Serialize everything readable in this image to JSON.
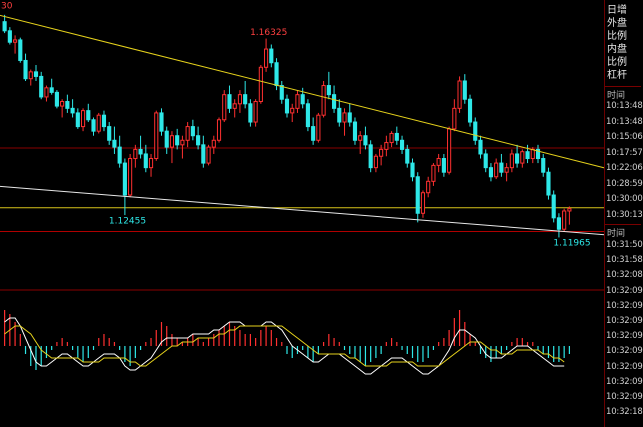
{
  "chart_data": {
    "type": "candlestick",
    "price_range": [
      1.113,
      1.17
    ],
    "candles": [
      [
        1.167,
        1.1685,
        1.1645,
        1.165
      ],
      [
        1.165,
        1.1658,
        1.162,
        1.1625
      ],
      [
        1.1625,
        1.164,
        1.16,
        1.163
      ],
      [
        1.163,
        1.1635,
        1.158,
        1.1585
      ],
      [
        1.1585,
        1.16,
        1.154,
        1.1545
      ],
      [
        1.1545,
        1.1565,
        1.153,
        1.156
      ],
      [
        1.156,
        1.1575,
        1.154,
        1.155
      ],
      [
        1.155,
        1.156,
        1.15,
        1.1505
      ],
      [
        1.1505,
        1.153,
        1.1495,
        1.1525
      ],
      [
        1.1525,
        1.1545,
        1.151,
        1.1515
      ],
      [
        1.1515,
        1.152,
        1.148,
        1.1485
      ],
      [
        1.1485,
        1.15,
        1.146,
        1.1495
      ],
      [
        1.1495,
        1.151,
        1.147,
        1.148
      ],
      [
        1.148,
        1.15,
        1.146,
        1.147
      ],
      [
        1.147,
        1.148,
        1.1435,
        1.144
      ],
      [
        1.144,
        1.148,
        1.143,
        1.1475
      ],
      [
        1.1475,
        1.149,
        1.145,
        1.1455
      ],
      [
        1.1455,
        1.146,
        1.142,
        1.143
      ],
      [
        1.143,
        1.147,
        1.1425,
        1.1465
      ],
      [
        1.1465,
        1.1475,
        1.143,
        1.144
      ],
      [
        1.144,
        1.145,
        1.14,
        1.141
      ],
      [
        1.141,
        1.144,
        1.138,
        1.1395
      ],
      [
        1.1395,
        1.142,
        1.135,
        1.136
      ],
      [
        1.136,
        1.137,
        1.1246,
        1.129
      ],
      [
        1.129,
        1.138,
        1.1285,
        1.137
      ],
      [
        1.137,
        1.14,
        1.135,
        1.139
      ],
      [
        1.139,
        1.142,
        1.137,
        1.138
      ],
      [
        1.138,
        1.14,
        1.134,
        1.135
      ],
      [
        1.135,
        1.138,
        1.133,
        1.137
      ],
      [
        1.137,
        1.1475,
        1.1365,
        1.147
      ],
      [
        1.147,
        1.148,
        1.142,
        1.143
      ],
      [
        1.143,
        1.144,
        1.138,
        1.1395
      ],
      [
        1.1395,
        1.143,
        1.136,
        1.142
      ],
      [
        1.142,
        1.1435,
        1.139,
        1.14
      ],
      [
        1.14,
        1.142,
        1.137,
        1.141
      ],
      [
        1.141,
        1.145,
        1.1395,
        1.144
      ],
      [
        1.144,
        1.1455,
        1.141,
        1.142
      ],
      [
        1.142,
        1.144,
        1.139,
        1.14
      ],
      [
        1.14,
        1.142,
        1.135,
        1.136
      ],
      [
        1.136,
        1.14,
        1.1355,
        1.1395
      ],
      [
        1.1395,
        1.142,
        1.138,
        1.141
      ],
      [
        1.141,
        1.146,
        1.1405,
        1.1455
      ],
      [
        1.1455,
        1.152,
        1.145,
        1.151
      ],
      [
        1.151,
        1.153,
        1.147,
        1.148
      ],
      [
        1.148,
        1.15,
        1.146,
        1.149
      ],
      [
        1.149,
        1.152,
        1.147,
        1.151
      ],
      [
        1.151,
        1.154,
        1.148,
        1.149
      ],
      [
        1.149,
        1.15,
        1.144,
        1.145
      ],
      [
        1.145,
        1.15,
        1.144,
        1.1495
      ],
      [
        1.1495,
        1.1575,
        1.149,
        1.157
      ],
      [
        1.157,
        1.1633,
        1.156,
        1.161
      ],
      [
        1.161,
        1.162,
        1.157,
        1.158
      ],
      [
        1.158,
        1.159,
        1.152,
        1.153
      ],
      [
        1.153,
        1.154,
        1.149,
        1.15
      ],
      [
        1.15,
        1.151,
        1.146,
        1.147
      ],
      [
        1.147,
        1.149,
        1.145,
        1.148
      ],
      [
        1.148,
        1.152,
        1.147,
        1.151
      ],
      [
        1.151,
        1.1525,
        1.148,
        1.149
      ],
      [
        1.149,
        1.15,
        1.143,
        1.144
      ],
      [
        1.144,
        1.146,
        1.14,
        1.141
      ],
      [
        1.141,
        1.147,
        1.1405,
        1.1465
      ],
      [
        1.1465,
        1.154,
        1.146,
        1.153
      ],
      [
        1.153,
        1.156,
        1.15,
        1.151
      ],
      [
        1.151,
        1.153,
        1.147,
        1.148
      ],
      [
        1.148,
        1.15,
        1.144,
        1.145
      ],
      [
        1.145,
        1.148,
        1.142,
        1.147
      ],
      [
        1.147,
        1.149,
        1.144,
        1.145
      ],
      [
        1.145,
        1.146,
        1.14,
        1.141
      ],
      [
        1.141,
        1.143,
        1.138,
        1.142
      ],
      [
        1.142,
        1.144,
        1.139,
        1.14
      ],
      [
        1.14,
        1.141,
        1.134,
        1.135
      ],
      [
        1.135,
        1.138,
        1.134,
        1.1375
      ],
      [
        1.1375,
        1.14,
        1.1355,
        1.139
      ],
      [
        1.139,
        1.142,
        1.1375,
        1.1405
      ],
      [
        1.1405,
        1.143,
        1.1395,
        1.1425
      ],
      [
        1.1425,
        1.144,
        1.14,
        1.141
      ],
      [
        1.141,
        1.142,
        1.138,
        1.139
      ],
      [
        1.139,
        1.14,
        1.135,
        1.136
      ],
      [
        1.136,
        1.137,
        1.132,
        1.133
      ],
      [
        1.133,
        1.134,
        1.123,
        1.125
      ],
      [
        1.125,
        1.13,
        1.124,
        1.1295
      ],
      [
        1.1295,
        1.133,
        1.1285,
        1.132
      ],
      [
        1.132,
        1.136,
        1.131,
        1.1355
      ],
      [
        1.1355,
        1.138,
        1.134,
        1.137
      ],
      [
        1.137,
        1.138,
        1.133,
        1.134
      ],
      [
        1.134,
        1.144,
        1.1335,
        1.1435
      ],
      [
        1.1435,
        1.15,
        1.143,
        1.148
      ],
      [
        1.148,
        1.155,
        1.147,
        1.154
      ],
      [
        1.154,
        1.1555,
        1.149,
        1.15
      ],
      [
        1.15,
        1.151,
        1.144,
        1.145
      ],
      [
        1.145,
        1.146,
        1.14,
        1.141
      ],
      [
        1.141,
        1.142,
        1.137,
        1.138
      ],
      [
        1.138,
        1.139,
        1.134,
        1.135
      ],
      [
        1.135,
        1.136,
        1.132,
        1.133
      ],
      [
        1.133,
        1.137,
        1.1325,
        1.136
      ],
      [
        1.136,
        1.138,
        1.133,
        1.134
      ],
      [
        1.134,
        1.136,
        1.132,
        1.135
      ],
      [
        1.135,
        1.139,
        1.134,
        1.138
      ],
      [
        1.138,
        1.14,
        1.135,
        1.136
      ],
      [
        1.136,
        1.139,
        1.135,
        1.1385
      ],
      [
        1.1385,
        1.14,
        1.136,
        1.137
      ],
      [
        1.137,
        1.1395,
        1.136,
        1.139
      ],
      [
        1.139,
        1.14,
        1.136,
        1.137
      ],
      [
        1.137,
        1.138,
        1.133,
        1.134
      ],
      [
        1.134,
        1.135,
        1.128,
        1.129
      ],
      [
        1.129,
        1.13,
        1.123,
        1.124
      ],
      [
        1.124,
        1.125,
        1.1197,
        1.1215
      ],
      [
        1.1215,
        1.126,
        1.121,
        1.1255
      ],
      [
        1.1255,
        1.1265,
        1.1225,
        1.126
      ]
    ],
    "annotations": [
      {
        "label": "1.16325",
        "value": 1.16325,
        "index": 50,
        "color": "#ff4040"
      },
      {
        "label": "1.12455",
        "value": 1.12455,
        "index": 23,
        "color": "#2ee8e8"
      },
      {
        "label": "1.11965",
        "value": 1.11965,
        "index": 108,
        "color": "#2ee8e8"
      },
      {
        "label": "30",
        "value": 1.169,
        "index": 0,
        "color": "#ff4040"
      }
    ],
    "trendlines": [
      {
        "color": "#e6d21c",
        "from": [
          -2,
          1.1687
        ],
        "to": [
          118,
          1.134
        ]
      },
      {
        "color": "#e8e8e8",
        "from": [
          -2,
          1.131
        ],
        "to": [
          118,
          1.12
        ]
      }
    ],
    "hlines": [
      {
        "value": 1.1262,
        "color": "#d8c41a"
      },
      {
        "value": 1.121,
        "color": "#b00000"
      }
    ],
    "macd": {
      "histogram": [
        0.9,
        0.8,
        0.6,
        0.3,
        -0.2,
        -0.5,
        -0.6,
        -0.5,
        -0.3,
        -0.1,
        0.1,
        0.2,
        0.1,
        -0.1,
        -0.3,
        -0.4,
        -0.3,
        -0.1,
        0.2,
        0.3,
        0.2,
        0.1,
        -0.1,
        -0.4,
        -0.5,
        -0.3,
        -0.1,
        0.1,
        0.2,
        0.4,
        0.6,
        0.5,
        0.3,
        0.2,
        0.1,
        0.2,
        0.3,
        0.2,
        0.1,
        0.2,
        0.3,
        0.4,
        0.5,
        0.6,
        0.5,
        0.4,
        0.3,
        0.3,
        0.2,
        0.4,
        0.5,
        0.4,
        0.2,
        0.1,
        -0.2,
        -0.3,
        -0.2,
        -0.1,
        -0.3,
        -0.4,
        -0.2,
        0.1,
        0.3,
        0.2,
        0.1,
        -0.1,
        -0.2,
        -0.3,
        -0.4,
        -0.5,
        -0.4,
        -0.3,
        -0.2,
        0.1,
        0.2,
        0.1,
        -0.1,
        -0.2,
        -0.3,
        -0.4,
        -0.4,
        -0.3,
        -0.1,
        0.1,
        0.2,
        0.4,
        0.7,
        0.9,
        0.6,
        0.3,
        0.1,
        -0.2,
        -0.3,
        -0.4,
        -0.3,
        -0.2,
        -0.1,
        0.1,
        0.2,
        0.2,
        0.1,
        0.1,
        -0.1,
        -0.2,
        -0.3,
        -0.4,
        -0.4,
        -0.3,
        -0.2
      ],
      "line1": [
        0.6,
        0.7,
        0.7,
        0.5,
        0.2,
        -0.1,
        -0.4,
        -0.5,
        -0.5,
        -0.4,
        -0.3,
        -0.2,
        -0.2,
        -0.3,
        -0.4,
        -0.5,
        -0.5,
        -0.4,
        -0.3,
        -0.2,
        -0.2,
        -0.2,
        -0.3,
        -0.5,
        -0.6,
        -0.6,
        -0.5,
        -0.4,
        -0.3,
        -0.1,
        0.1,
        0.2,
        0.2,
        0.2,
        0.2,
        0.2,
        0.3,
        0.3,
        0.3,
        0.3,
        0.4,
        0.4,
        0.5,
        0.6,
        0.6,
        0.6,
        0.5,
        0.5,
        0.5,
        0.5,
        0.6,
        0.6,
        0.5,
        0.4,
        0.2,
        0.0,
        -0.1,
        -0.2,
        -0.3,
        -0.4,
        -0.4,
        -0.3,
        -0.2,
        -0.2,
        -0.2,
        -0.3,
        -0.4,
        -0.5,
        -0.6,
        -0.7,
        -0.7,
        -0.6,
        -0.5,
        -0.4,
        -0.3,
        -0.3,
        -0.3,
        -0.4,
        -0.5,
        -0.6,
        -0.7,
        -0.7,
        -0.6,
        -0.5,
        -0.3,
        -0.1,
        0.2,
        0.4,
        0.4,
        0.3,
        0.2,
        0.0,
        -0.2,
        -0.3,
        -0.3,
        -0.3,
        -0.2,
        -0.1,
        0.0,
        0.0,
        0.0,
        -0.1,
        -0.2,
        -0.3,
        -0.4,
        -0.5,
        -0.5,
        -0.5
      ],
      "line2": [
        0.3,
        0.4,
        0.5,
        0.5,
        0.4,
        0.3,
        0.1,
        -0.1,
        -0.2,
        -0.3,
        -0.3,
        -0.3,
        -0.3,
        -0.3,
        -0.3,
        -0.4,
        -0.4,
        -0.4,
        -0.4,
        -0.3,
        -0.3,
        -0.3,
        -0.3,
        -0.3,
        -0.4,
        -0.4,
        -0.5,
        -0.5,
        -0.4,
        -0.3,
        -0.2,
        -0.1,
        0.0,
        0.0,
        0.1,
        0.1,
        0.1,
        0.2,
        0.2,
        0.2,
        0.2,
        0.3,
        0.3,
        0.4,
        0.4,
        0.5,
        0.5,
        0.5,
        0.5,
        0.5,
        0.5,
        0.5,
        0.5,
        0.5,
        0.4,
        0.3,
        0.2,
        0.1,
        0.0,
        -0.1,
        -0.2,
        -0.2,
        -0.2,
        -0.2,
        -0.2,
        -0.2,
        -0.3,
        -0.3,
        -0.4,
        -0.5,
        -0.5,
        -0.5,
        -0.5,
        -0.5,
        -0.4,
        -0.4,
        -0.4,
        -0.4,
        -0.4,
        -0.5,
        -0.5,
        -0.5,
        -0.5,
        -0.5,
        -0.4,
        -0.3,
        -0.2,
        -0.1,
        0.0,
        0.1,
        0.1,
        0.1,
        0.0,
        -0.1,
        -0.1,
        -0.2,
        -0.2,
        -0.2,
        -0.1,
        -0.1,
        -0.1,
        -0.1,
        -0.1,
        -0.2,
        -0.2,
        -0.3,
        -0.3,
        -0.4
      ]
    }
  },
  "side_panel": {
    "labels": [
      "日增",
      "外盘",
      "比例",
      "内盘",
      "比例",
      "杠杆"
    ],
    "header": "时间",
    "times": [
      "10:13:48",
      "10:13:48",
      "10:15:06",
      "10:17:57",
      "10:22:06",
      "10:28:59",
      "10:30:00",
      "10:30:13"
    ],
    "header2": "时间",
    "times2": [
      "10:31:50",
      "10:31:58",
      "10:32:08",
      "10:32:09",
      "10:32:09",
      "10:32:09",
      "10:32:09",
      "10:32:09",
      "10:32:09",
      "10:32:09",
      "10:32:09",
      "10:32:18"
    ]
  },
  "colors": {
    "up": "#ff3030",
    "down": "#2ee8e8",
    "macd_line1": "#ffffff",
    "macd_line2": "#e6d21c",
    "grid_red": "#8a0000"
  }
}
